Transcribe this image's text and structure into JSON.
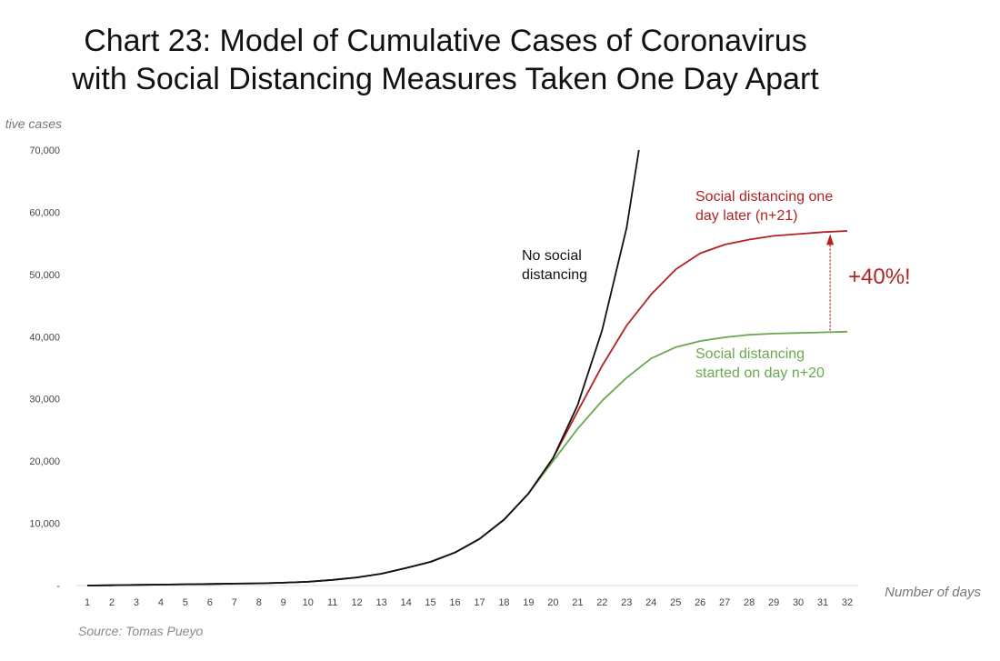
{
  "chart_data": {
    "type": "line",
    "title_lines": [
      "Chart 23: Model of Cumulative Cases of Coronavirus",
      "with Social Distancing Measures Taken One Day Apart"
    ],
    "ylabel": "tive cases",
    "xlabel": "Number of days",
    "source": "Source: Tomas Pueyo",
    "x": [
      1,
      2,
      3,
      4,
      5,
      6,
      7,
      8,
      9,
      10,
      11,
      12,
      13,
      14,
      15,
      16,
      17,
      18,
      19,
      20,
      21,
      22,
      23,
      24,
      25,
      26,
      27,
      28,
      29,
      30,
      31,
      32
    ],
    "xlim": [
      1,
      32
    ],
    "ylim": [
      0,
      70000
    ],
    "yticks": [
      {
        "value": 0,
        "label": "-"
      },
      {
        "value": 10000,
        "label": "10,000"
      },
      {
        "value": 20000,
        "label": "20,000"
      },
      {
        "value": 30000,
        "label": "30,000"
      },
      {
        "value": 40000,
        "label": "40,000"
      },
      {
        "value": 50000,
        "label": "50,000"
      },
      {
        "value": 60000,
        "label": "60,000"
      },
      {
        "value": 70000,
        "label": "70,000"
      }
    ],
    "grid": false,
    "series": [
      {
        "key": "no_sd",
        "color": "#111111",
        "points": [
          [
            1,
            0
          ],
          [
            2,
            50
          ],
          [
            3,
            100
          ],
          [
            4,
            150
          ],
          [
            5,
            200
          ],
          [
            6,
            250
          ],
          [
            7,
            300
          ],
          [
            8,
            350
          ],
          [
            9,
            450
          ],
          [
            10,
            600
          ],
          [
            11,
            900
          ],
          [
            12,
            1300
          ],
          [
            13,
            1900
          ],
          [
            14,
            2800
          ],
          [
            15,
            3800
          ],
          [
            16,
            5300
          ],
          [
            17,
            7500
          ],
          [
            18,
            10600
          ],
          [
            19,
            14800
          ],
          [
            20,
            20500
          ],
          [
            21,
            29000
          ],
          [
            22,
            41000
          ],
          [
            23,
            57500
          ],
          [
            23.5,
            70000
          ]
        ]
      },
      {
        "key": "sd_n21",
        "color": "#B22222",
        "points": [
          [
            1,
            0
          ],
          [
            2,
            50
          ],
          [
            3,
            100
          ],
          [
            4,
            150
          ],
          [
            5,
            200
          ],
          [
            6,
            250
          ],
          [
            7,
            300
          ],
          [
            8,
            350
          ],
          [
            9,
            450
          ],
          [
            10,
            600
          ],
          [
            11,
            900
          ],
          [
            12,
            1300
          ],
          [
            13,
            1900
          ],
          [
            14,
            2800
          ],
          [
            15,
            3800
          ],
          [
            16,
            5300
          ],
          [
            17,
            7500
          ],
          [
            18,
            10600
          ],
          [
            19,
            14800
          ],
          [
            20,
            20500
          ],
          [
            21,
            28000
          ],
          [
            22,
            35300
          ],
          [
            23,
            41800
          ],
          [
            24,
            46800
          ],
          [
            25,
            50800
          ],
          [
            26,
            53400
          ],
          [
            27,
            54800
          ],
          [
            28,
            55600
          ],
          [
            29,
            56200
          ],
          [
            30,
            56500
          ],
          [
            31,
            56800
          ],
          [
            32,
            57000
          ]
        ]
      },
      {
        "key": "sd_n20",
        "color": "#6AA84F",
        "points": [
          [
            1,
            0
          ],
          [
            2,
            50
          ],
          [
            3,
            100
          ],
          [
            4,
            150
          ],
          [
            5,
            200
          ],
          [
            6,
            250
          ],
          [
            7,
            300
          ],
          [
            8,
            350
          ],
          [
            9,
            450
          ],
          [
            10,
            600
          ],
          [
            11,
            900
          ],
          [
            12,
            1300
          ],
          [
            13,
            1900
          ],
          [
            14,
            2800
          ],
          [
            15,
            3800
          ],
          [
            16,
            5300
          ],
          [
            17,
            7500
          ],
          [
            18,
            10600
          ],
          [
            19,
            14800
          ],
          [
            20,
            20000
          ],
          [
            21,
            25200
          ],
          [
            22,
            29700
          ],
          [
            23,
            33400
          ],
          [
            24,
            36500
          ],
          [
            25,
            38300
          ],
          [
            26,
            39300
          ],
          [
            27,
            39900
          ],
          [
            28,
            40300
          ],
          [
            29,
            40500
          ],
          [
            30,
            40600
          ],
          [
            31,
            40700
          ],
          [
            32,
            40800
          ]
        ]
      }
    ],
    "annotations": [
      {
        "key": "no_sd",
        "lines": [
          "No social",
          "distancing"
        ],
        "color": "#111111"
      },
      {
        "key": "sd_n21",
        "lines": [
          "Social distancing one",
          "day later (n+21)"
        ],
        "color": "#B22222"
      },
      {
        "key": "sd_n20",
        "lines": [
          "Social distancing",
          "started on day n+20"
        ],
        "color": "#6AA84F"
      },
      {
        "key": "pct",
        "lines": [
          "+40%!"
        ],
        "color": "#B22222"
      }
    ],
    "arrow": {
      "x": 31.3,
      "from": 41000,
      "to": 56500,
      "color": "#B22222"
    }
  }
}
